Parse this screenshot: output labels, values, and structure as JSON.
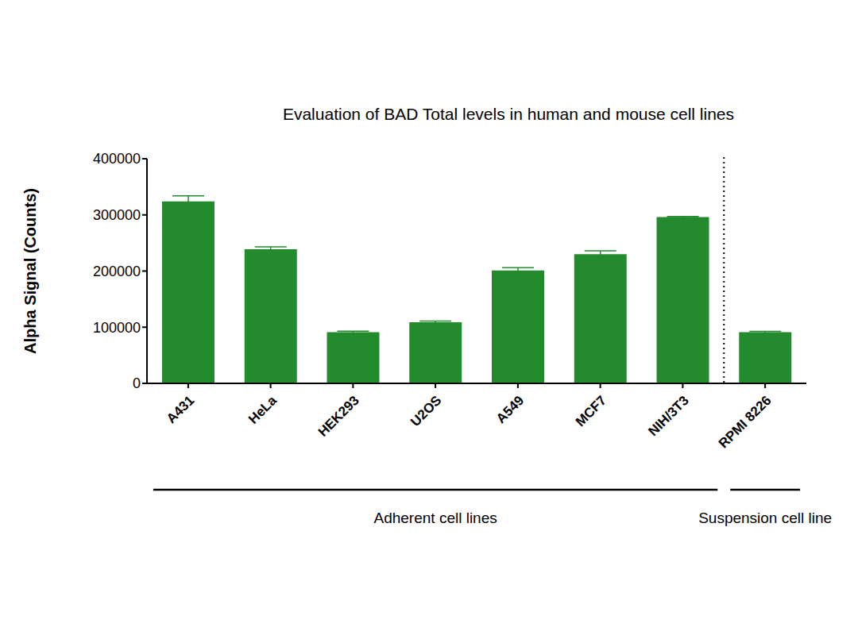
{
  "chart_data": {
    "type": "bar",
    "title": "Evaluation of BAD Total levels in human and mouse cell lines",
    "y_label": "Alpha Signal (Counts)",
    "categories": [
      "A431",
      "HeLa",
      "HEK293",
      "U2OS",
      "A549",
      "MCF7",
      "NIH/3T3",
      "RPMI 8226"
    ],
    "values": [
      324000,
      239000,
      91000,
      109000,
      201000,
      230000,
      296000,
      91000
    ],
    "errors": [
      10000,
      4000,
      2000,
      2000,
      5000,
      6000,
      1000,
      1500
    ],
    "color": "#238a2d",
    "ylim": [
      0,
      400000
    ],
    "yticks": [
      0,
      100000,
      200000,
      300000,
      400000
    ],
    "grid": false,
    "groups": [
      {
        "label": "Adherent cell lines",
        "categories": [
          "A431",
          "HeLa",
          "HEK293",
          "U2OS",
          "A549",
          "MCF7",
          "NIH/3T3"
        ]
      },
      {
        "label": "Suspension cell line",
        "categories": [
          "RPMI 8226"
        ]
      }
    ]
  }
}
